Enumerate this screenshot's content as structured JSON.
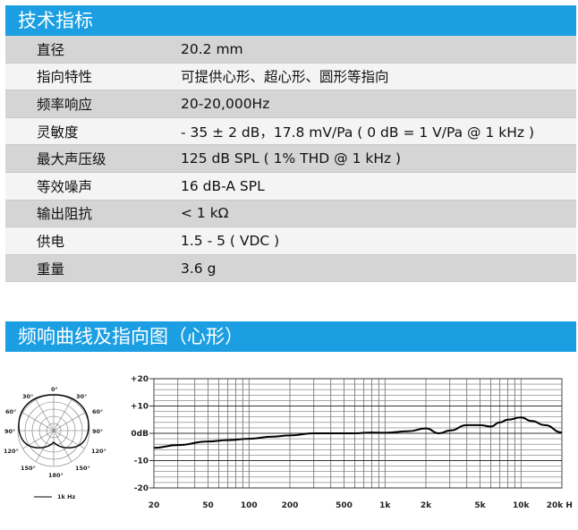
{
  "specs": {
    "title": "技术指标",
    "rows": [
      {
        "label": "直径",
        "value": "20.2 mm"
      },
      {
        "label": "指向特性",
        "value": "可提供心形、超心形、圆形等指向"
      },
      {
        "label": "频率响应",
        "value": "20-20,000Hz"
      },
      {
        "label": "灵敏度",
        "value": "- 35 ± 2 dB，17.8 mV/Pa ( 0 dB = 1 V/Pa @ 1 kHz )"
      },
      {
        "label": "最大声压级",
        "value": "125 dB SPL ( 1% THD @ 1 kHz )"
      },
      {
        "label": "等效噪声",
        "value": "16 dB-A SPL"
      },
      {
        "label": "输出阻抗",
        "value": "< 1 kΩ"
      },
      {
        "label": "供电",
        "value": "1.5 - 5 ( VDC )"
      },
      {
        "label": "重量",
        "value": "3.6 g"
      }
    ]
  },
  "curves": {
    "title": "频响曲线及指向图（心形）"
  },
  "polar": {
    "angle_labels": [
      "0°",
      "30°",
      "30°",
      "60°",
      "60°",
      "90°",
      "90°",
      "120°",
      "120°",
      "150°",
      "150°",
      "180°"
    ],
    "legend": "1k Hz"
  },
  "chart_data": {
    "type": "line",
    "x_scale": "log",
    "xlim": [
      20,
      20000
    ],
    "ylim": [
      -20,
      20
    ],
    "x_ticks": [
      20,
      50,
      100,
      200,
      500,
      1000,
      2000,
      5000,
      10000,
      20000
    ],
    "x_tick_labels": [
      "20",
      "50",
      "100",
      "200",
      "500",
      "1k",
      "2k",
      "5k",
      "10k",
      "20k Hz"
    ],
    "y_ticks": [
      20,
      10,
      0,
      -10,
      -20
    ],
    "y_tick_labels": [
      "+20",
      "+10",
      "0dB",
      "-10",
      "-20"
    ],
    "grid": true,
    "series": [
      {
        "x": [
          20,
          30,
          50,
          70,
          100,
          150,
          200,
          300,
          400,
          500,
          600,
          800,
          1000,
          1500,
          2000,
          2500,
          3000,
          4000,
          5000,
          6000,
          7000,
          8000,
          10000,
          12000,
          15000,
          20000
        ],
        "y": [
          -5.3,
          -4.3,
          -3.0,
          -2.5,
          -2.0,
          -1.2,
          -0.8,
          0,
          0,
          0,
          0,
          0.3,
          0.2,
          0.8,
          1.8,
          0,
          1.0,
          3.0,
          3.0,
          2.5,
          4.0,
          5.0,
          5.8,
          4.5,
          3.0,
          0.3
        ]
      }
    ]
  }
}
